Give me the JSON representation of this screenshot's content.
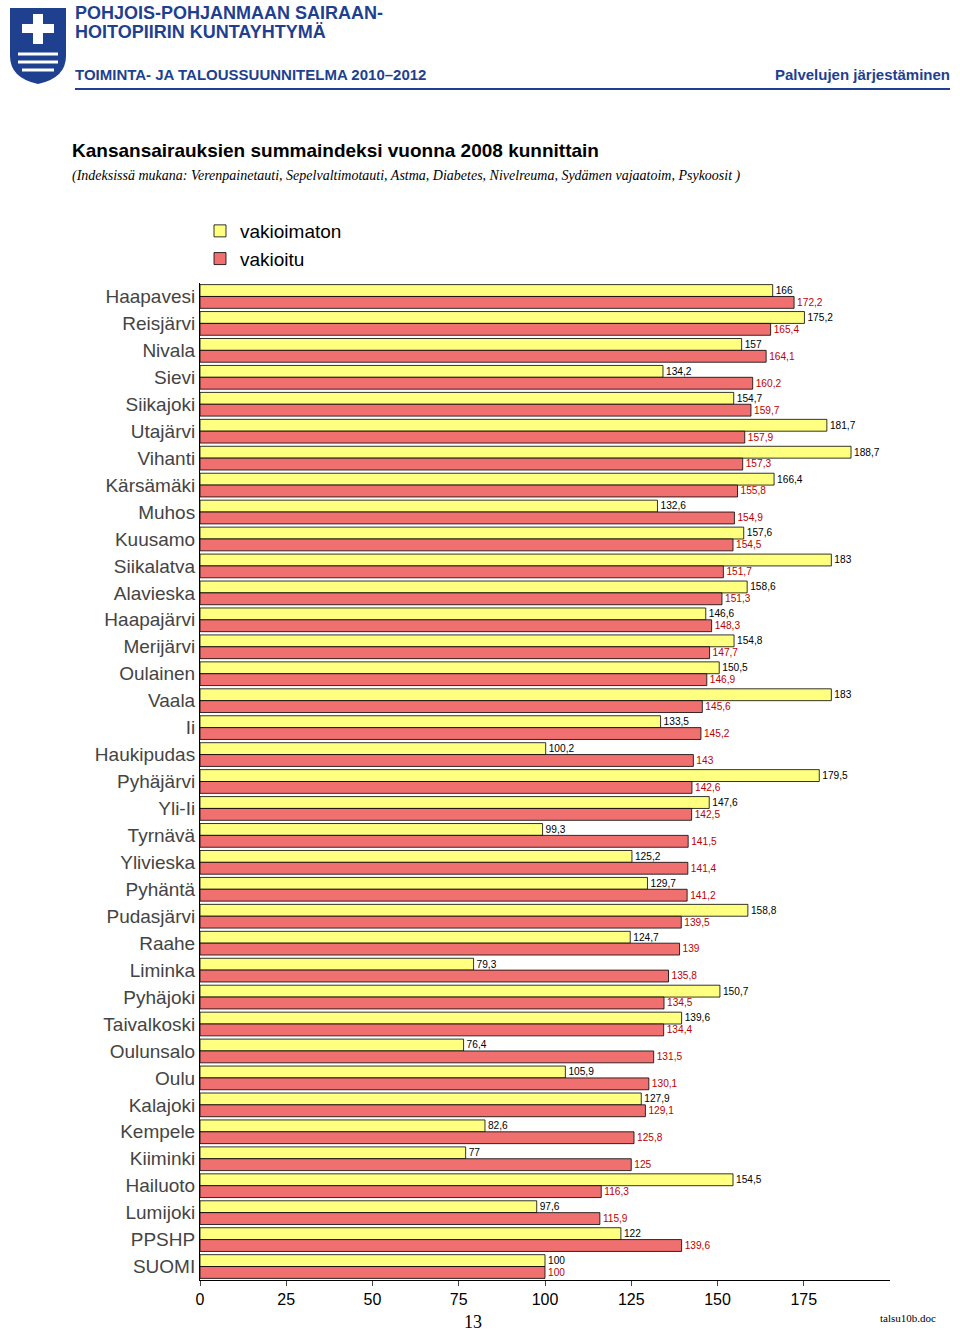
{
  "header": {
    "org": [
      "POHJOIS-POHJANMAAN SAIRAAN-",
      "HOITOPIIRIN KUNTAYHTYMÄ"
    ],
    "plan": "TOIMINTA- JA TALOUSSUUNNITELMA 2010–2012",
    "section": "Palvelujen järjestäminen"
  },
  "chart_data": {
    "type": "bar",
    "orientation": "horizontal",
    "title": "Kansansairauksien summaindeksi vuonna 2008 kunnittain",
    "subtitle": "(Indeksissä mukana: Verenpainetauti, Sepelvaltimotauti, Astma, Diabetes, Nivelreuma, Sydämen vajaatoim, Psykoosit )",
    "categories": [
      "Haapavesi",
      "Reisjärvi",
      "Nivala",
      "Sievi",
      "Siikajoki",
      "Utajärvi",
      "Vihanti",
      "Kärsämäki",
      "Muhos",
      "Kuusamo",
      "Siikalatva",
      "Alavieska",
      "Haapajärvi",
      "Merijärvi",
      "Oulainen",
      "Vaala",
      "Ii",
      "Haukipudas",
      "Pyhäjärvi",
      "Yli-Ii",
      "Tyrnävä",
      "Ylivieska",
      "Pyhäntä",
      "Pudasjärvi",
      "Raahe",
      "Liminka",
      "Pyhäjoki",
      "Taivalkoski",
      "Oulunsalo",
      "Oulu",
      "Kalajoki",
      "Kempele",
      "Kiiminki",
      "Hailuoto",
      "Lumijoki",
      "PPSHP",
      "SUOMI"
    ],
    "series": [
      {
        "name": "vakioimaton",
        "color": "#ffff80",
        "values": [
          166,
          175.2,
          157,
          134.2,
          154.7,
          181.7,
          188.7,
          166.4,
          132.6,
          157.6,
          183,
          158.6,
          146.6,
          154.8,
          150.5,
          183,
          133.5,
          100.2,
          179.5,
          147.6,
          99.3,
          125.2,
          129.7,
          158.8,
          124.7,
          79.3,
          150.7,
          139.6,
          76.4,
          105.9,
          127.9,
          82.6,
          77,
          154.5,
          97.6,
          122,
          100
        ],
        "value_labels": [
          "166",
          "175,2",
          "157",
          "134,2",
          "154,7",
          "181,7",
          "188,7",
          "166,4",
          "132,6",
          "157,6",
          "183",
          "158,6",
          "146,6",
          "154,8",
          "150,5",
          "183",
          "133,5",
          "100,2",
          "179,5",
          "147,6",
          "99,3",
          "125,2",
          "129,7",
          "158,8",
          "124,7",
          "79,3",
          "150,7",
          "139,6",
          "76,4",
          "105,9",
          "127,9",
          "82,6",
          "77",
          "154,5",
          "97,6",
          "122",
          "100"
        ]
      },
      {
        "name": "vakioitu",
        "color": "#f07070",
        "values": [
          172.2,
          165.4,
          164.1,
          160.2,
          159.7,
          157.9,
          157.3,
          155.8,
          154.9,
          154.5,
          151.7,
          151.3,
          148.3,
          147.7,
          146.9,
          145.6,
          145.2,
          143,
          142.6,
          142.5,
          141.5,
          141.4,
          141.2,
          139.5,
          139,
          135.8,
          134.5,
          134.4,
          131.5,
          130.1,
          129.1,
          125.8,
          125,
          116.3,
          115.9,
          139.6,
          100
        ],
        "value_labels": [
          "172,2",
          "165,4",
          "164,1",
          "160,2",
          "159,7",
          "157,9",
          "157,3",
          "155,8",
          "154,9",
          "154,5",
          "151,7",
          "151,3",
          "148,3",
          "147,7",
          "146,9",
          "145,6",
          "145,2",
          "143",
          "142,6",
          "142,5",
          "141,5",
          "141,4",
          "141,2",
          "139,5",
          "139",
          "135,8",
          "134,5",
          "134,4",
          "131,5",
          "130,1",
          "129,1",
          "125,8",
          "125",
          "116,3",
          "115,9",
          "139,6",
          "100"
        ]
      }
    ],
    "xlim": [
      0,
      200
    ],
    "xticks": [
      0,
      25,
      50,
      75,
      100,
      125,
      150,
      175
    ],
    "data_labels": true,
    "legend": "top left",
    "grid": false
  },
  "footer": {
    "page": "13",
    "file": "talsu10b.doc"
  }
}
